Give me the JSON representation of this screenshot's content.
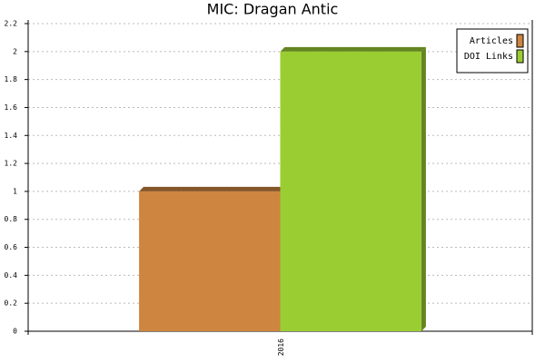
{
  "chart_data": {
    "type": "bar",
    "title": "MIC: Dragan Antic",
    "categories": [
      "2016"
    ],
    "series": [
      {
        "name": "Articles",
        "color": "#cd853f",
        "values": [
          1
        ]
      },
      {
        "name": "DOI Links",
        "color": "#9acd32",
        "values": [
          2
        ]
      }
    ],
    "ylim": [
      0,
      2.2
    ],
    "yticks": [
      0,
      0.2,
      0.4,
      0.6,
      0.8,
      1,
      1.2,
      1.4,
      1.6,
      1.8,
      2,
      2.2
    ],
    "grid": true,
    "legend": "top-right"
  }
}
